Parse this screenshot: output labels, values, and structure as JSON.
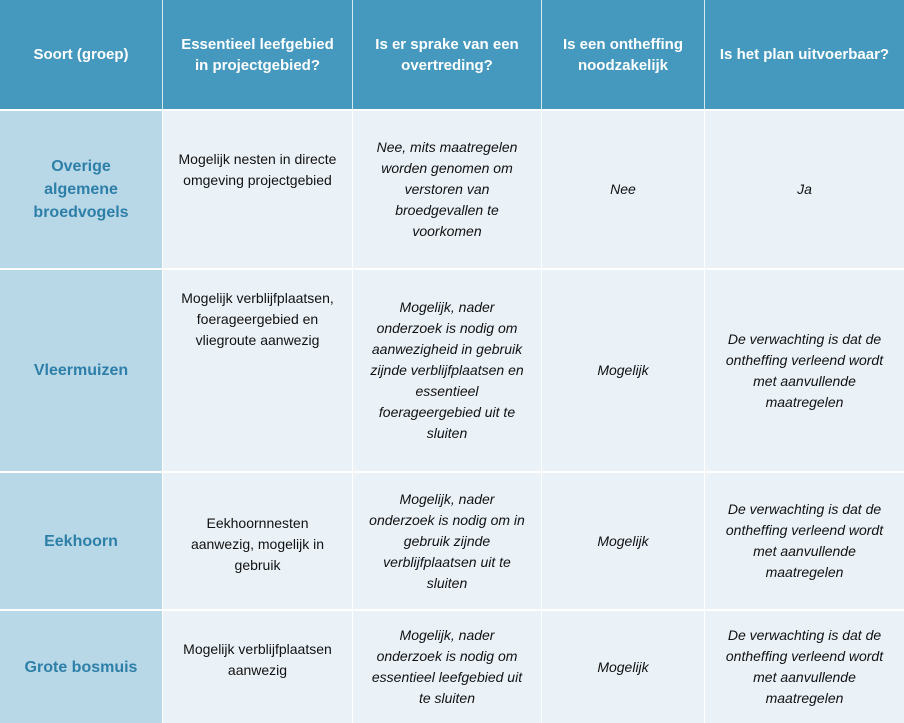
{
  "headers": [
    "Soort (groep)",
    "Essentieel leefgebied in projectgebied?",
    "Is er sprake van een overtreding?",
    "Is een ontheffing noodzakelijk",
    "Is het plan uitvoerbaar?"
  ],
  "rows": [
    {
      "species": "Overige algemene broedvogels",
      "habitat": "Mogelijk nesten in directe omgeving projectgebied",
      "violation": "Nee, mits maatregelen worden genomen om verstoren van broedgevallen te voorkomen",
      "exemption": "Nee",
      "feasible": "Ja"
    },
    {
      "species": "Vleermuizen",
      "habitat": "Mogelijk verblijfplaatsen, foerageergebied en vliegroute aanwezig",
      "violation": "Mogelijk, nader onderzoek is nodig om aanwezigheid in gebruik zijnde verblijfplaatsen en essentieel foerageergebied uit te sluiten",
      "exemption": "Mogelijk",
      "feasible": "De verwachting is dat de ontheffing verleend wordt met aanvullende maatregelen"
    },
    {
      "species": "Eekhoorn",
      "habitat": "Eekhoornnesten aanwezig, mogelijk in gebruik",
      "violation": "Mogelijk, nader onderzoek is nodig om in gebruik zijnde verblijfplaatsen uit te sluiten",
      "exemption": "Mogelijk",
      "feasible": "De verwachting is dat de ontheffing verleend wordt met aanvullende maatregelen"
    },
    {
      "species": "Grote bosmuis",
      "habitat": "Mogelijk verblijfplaatsen aanwezig",
      "violation": "Mogelijk, nader onderzoek is nodig om essentieel leefgebied uit te sluiten",
      "exemption": "Mogelijk",
      "feasible": "De verwachting is dat de ontheffing verleend wordt met aanvullende maatregelen"
    }
  ]
}
